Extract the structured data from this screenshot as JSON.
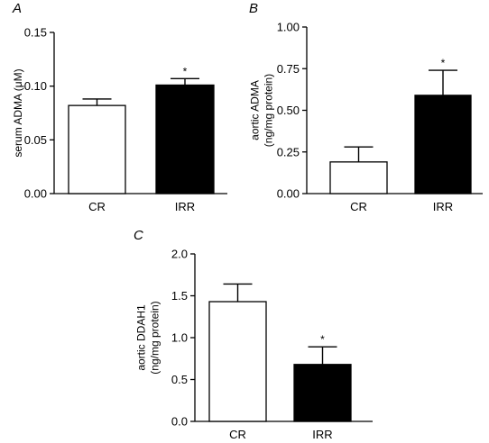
{
  "chart_data": [
    {
      "panel": "A",
      "type": "bar",
      "categories": [
        "CR",
        "IRR"
      ],
      "values": [
        0.082,
        0.101
      ],
      "errors": [
        0.006,
        0.006
      ],
      "annotations": [
        "",
        "*"
      ],
      "bar_colors": [
        "#ffffff",
        "#000000"
      ],
      "ylabel_lines": [
        "serum ADMA (μM)"
      ],
      "ylim": [
        0,
        0.15
      ],
      "yticks": [
        0.0,
        0.05,
        0.1,
        0.15
      ],
      "ytick_labels": [
        "0.00",
        "0.05",
        "0.10",
        "0.15"
      ],
      "grid": false
    },
    {
      "panel": "B",
      "type": "bar",
      "categories": [
        "CR",
        "IRR"
      ],
      "values": [
        0.19,
        0.59
      ],
      "errors": [
        0.09,
        0.15
      ],
      "annotations": [
        "",
        "*"
      ],
      "bar_colors": [
        "#ffffff",
        "#000000"
      ],
      "ylabel_lines": [
        "aortic ADMA",
        "(ng/mg protein)"
      ],
      "ylim": [
        0,
        1.0
      ],
      "yticks": [
        0.0,
        0.25,
        0.5,
        0.75,
        1.0
      ],
      "ytick_labels": [
        "0.00",
        "0.25",
        "0.50",
        "0.75",
        "1.00"
      ],
      "grid": false
    },
    {
      "panel": "C",
      "type": "bar",
      "categories": [
        "CR",
        "IRR"
      ],
      "values": [
        1.43,
        0.68
      ],
      "errors": [
        0.21,
        0.21
      ],
      "annotations": [
        "",
        "*"
      ],
      "bar_colors": [
        "#ffffff",
        "#000000"
      ],
      "ylabel_lines": [
        "aortic DDAH1",
        "(ng/mg protein)"
      ],
      "ylim": [
        0,
        2.0
      ],
      "yticks": [
        0.0,
        0.5,
        1.0,
        1.5,
        2.0
      ],
      "ytick_labels": [
        "0.0",
        "0.5",
        "1.0",
        "1.5",
        "2.0"
      ],
      "grid": false
    }
  ]
}
